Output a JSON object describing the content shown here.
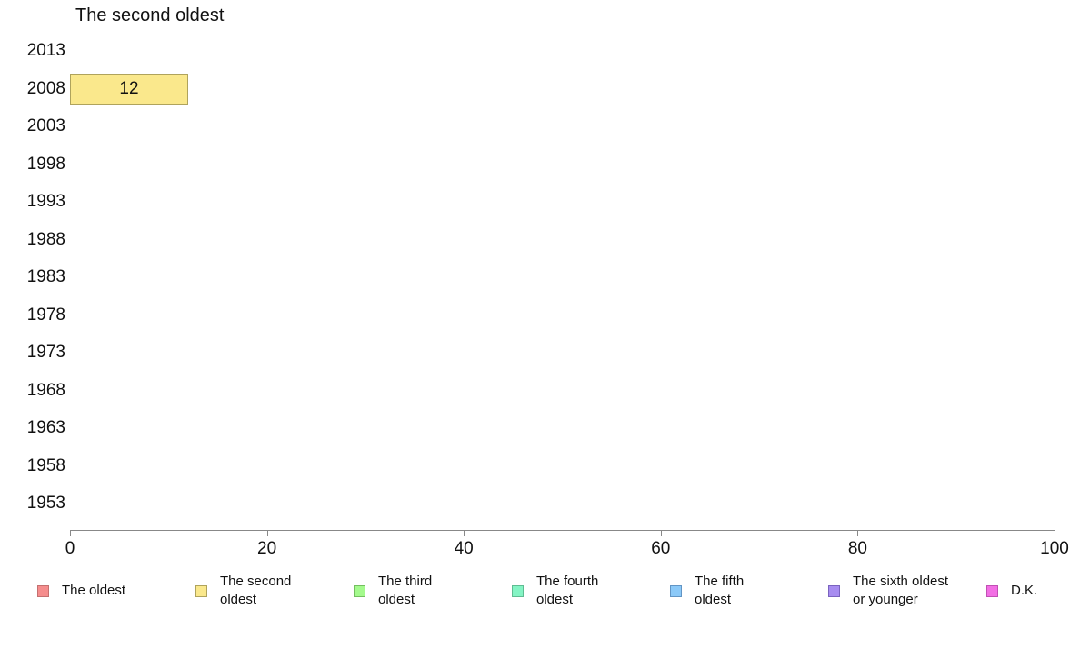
{
  "chart_data": {
    "type": "bar",
    "orientation": "horizontal",
    "title": "The second oldest",
    "categories": [
      "2013",
      "2008",
      "2003",
      "1998",
      "1993",
      "1988",
      "1983",
      "1978",
      "1973",
      "1968",
      "1963",
      "1958",
      "1953"
    ],
    "values": [
      0,
      12,
      0,
      0,
      0,
      0,
      0,
      0,
      0,
      0,
      0,
      0,
      0
    ],
    "bar_labels": [
      "",
      "12",
      "",
      "",
      "",
      "",
      "",
      "",
      "",
      "",
      "",
      "",
      ""
    ],
    "xlabel": "",
    "ylabel": "",
    "xlim": [
      0,
      100
    ],
    "x_ticks": [
      0,
      20,
      40,
      60,
      80,
      100
    ],
    "grid": false,
    "legend_position": "bottom",
    "axis_color": "#888888",
    "bar_style": {
      "fill": "#FAE88C",
      "border": "#AFA35C",
      "label_color": "#111111"
    },
    "legend": [
      {
        "label": "The oldest",
        "fill": "#F58D8D",
        "border": "#C47070"
      },
      {
        "label": "The second\noldest",
        "fill": "#FAE88C",
        "border": "#AFA35C"
      },
      {
        "label": "The third\noldest",
        "fill": "#A4FA8D",
        "border": "#74BE60"
      },
      {
        "label": "The fourth\noldest",
        "fill": "#84F4C4",
        "border": "#5FBC92"
      },
      {
        "label": "The fifth\noldest",
        "fill": "#8BC9F8",
        "border": "#6295C4"
      },
      {
        "label": "The sixth oldest\nor younger",
        "fill": "#A78CF0",
        "border": "#7A63BF"
      },
      {
        "label": "D.K.",
        "fill": "#F26FE4",
        "border": "#C050B4"
      }
    ]
  }
}
